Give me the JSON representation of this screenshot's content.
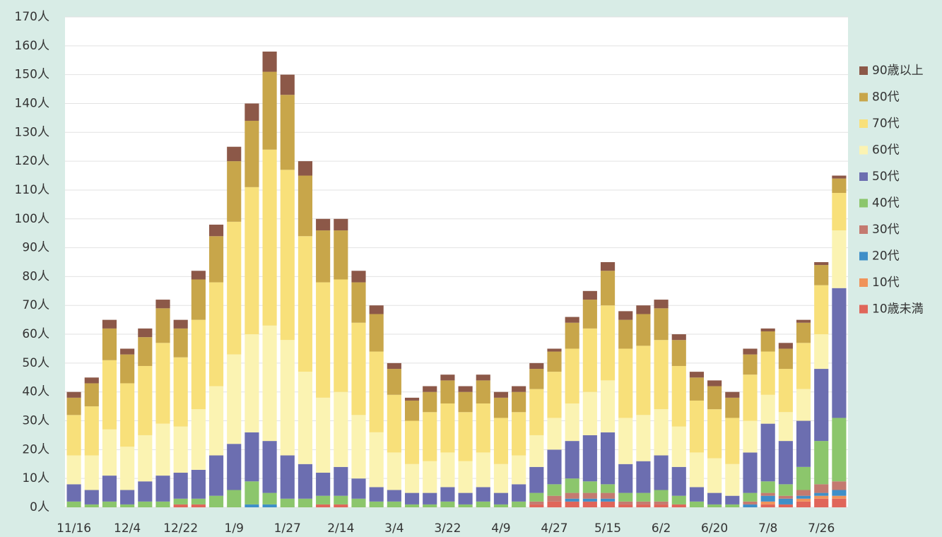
{
  "chart_data": {
    "type": "stacked_bar",
    "categories": [
      "11/16",
      null,
      null,
      "12/4",
      null,
      null,
      "12/22",
      null,
      null,
      "1/9",
      null,
      null,
      "1/27",
      null,
      null,
      "2/14",
      null,
      null,
      "3/4",
      null,
      null,
      "3/22",
      null,
      null,
      "4/9",
      null,
      null,
      "4/27",
      null,
      null,
      "5/15",
      null,
      null,
      "6/2",
      null,
      null,
      "6/20",
      null,
      null,
      "7/8",
      null,
      null,
      "7/26",
      null
    ],
    "series": [
      {
        "name": "10歳未満",
        "color": "#e0665a",
        "values": [
          0,
          0,
          0,
          0,
          0,
          0,
          1,
          1,
          0,
          0,
          0,
          0,
          0,
          0,
          1,
          1,
          0,
          0,
          0,
          0,
          0,
          0,
          0,
          0,
          0,
          0,
          1,
          2,
          2,
          2,
          2,
          1,
          1,
          1,
          1,
          0,
          0,
          0,
          0,
          1,
          1,
          2,
          3,
          3
        ]
      },
      {
        "name": "10代",
        "color": "#f0935a",
        "values": [
          0,
          0,
          0,
          0,
          0,
          0,
          0,
          0,
          0,
          0,
          0,
          0,
          0,
          0,
          0,
          0,
          0,
          0,
          0,
          0,
          0,
          0,
          0,
          0,
          0,
          0,
          0,
          0,
          0,
          0,
          0,
          0,
          0,
          0,
          0,
          0,
          0,
          0,
          0,
          1,
          0,
          1,
          1,
          1
        ]
      },
      {
        "name": "20代",
        "color": "#3f8fc8",
        "values": [
          0,
          0,
          0,
          0,
          0,
          0,
          0,
          0,
          0,
          0,
          1,
          1,
          0,
          0,
          0,
          0,
          0,
          0,
          0,
          0,
          0,
          0,
          0,
          0,
          0,
          0,
          0,
          0,
          1,
          1,
          1,
          0,
          0,
          0,
          0,
          0,
          0,
          0,
          1,
          2,
          2,
          1,
          1,
          2
        ]
      },
      {
        "name": "30代",
        "color": "#c47a70",
        "values": [
          0,
          0,
          0,
          0,
          0,
          0,
          0,
          0,
          0,
          0,
          0,
          0,
          0,
          0,
          0,
          0,
          0,
          0,
          0,
          0,
          0,
          0,
          0,
          0,
          0,
          0,
          1,
          2,
          2,
          2,
          2,
          1,
          1,
          1,
          0,
          0,
          0,
          0,
          1,
          1,
          1,
          2,
          3,
          3
        ]
      },
      {
        "name": "40代",
        "color": "#8cc66c",
        "values": [
          2,
          1,
          2,
          1,
          2,
          2,
          2,
          2,
          4,
          6,
          8,
          4,
          3,
          3,
          3,
          3,
          3,
          2,
          2,
          1,
          1,
          2,
          1,
          2,
          1,
          2,
          3,
          4,
          5,
          4,
          3,
          3,
          3,
          4,
          3,
          2,
          1,
          1,
          3,
          4,
          4,
          8,
          15,
          22
        ]
      },
      {
        "name": "50代",
        "color": "#6c6eb0",
        "values": [
          6,
          5,
          9,
          5,
          7,
          9,
          9,
          10,
          14,
          16,
          17,
          18,
          15,
          12,
          8,
          10,
          7,
          5,
          4,
          4,
          4,
          5,
          4,
          5,
          4,
          6,
          9,
          12,
          13,
          16,
          18,
          10,
          11,
          12,
          10,
          5,
          4,
          3,
          14,
          20,
          15,
          16,
          25,
          45
        ]
      },
      {
        "name": "60代",
        "color": "#fbf3b2",
        "values": [
          10,
          12,
          16,
          15,
          16,
          18,
          16,
          21,
          24,
          31,
          34,
          40,
          40,
          32,
          26,
          26,
          22,
          19,
          13,
          10,
          11,
          12,
          11,
          12,
          10,
          10,
          11,
          11,
          13,
          15,
          18,
          16,
          16,
          16,
          14,
          12,
          12,
          11,
          11,
          10,
          10,
          11,
          12,
          20
        ]
      },
      {
        "name": "70代",
        "color": "#f8e07a",
        "values": [
          14,
          17,
          24,
          22,
          24,
          28,
          24,
          31,
          36,
          46,
          51,
          61,
          59,
          47,
          40,
          39,
          32,
          28,
          20,
          15,
          17,
          17,
          17,
          17,
          16,
          15,
          16,
          16,
          19,
          22,
          26,
          24,
          24,
          24,
          21,
          18,
          17,
          16,
          16,
          15,
          15,
          16,
          17,
          13
        ]
      },
      {
        "name": "80代",
        "color": "#c8a64a",
        "values": [
          6,
          8,
          11,
          10,
          10,
          12,
          10,
          14,
          16,
          21,
          23,
          27,
          26,
          21,
          18,
          17,
          14,
          13,
          9,
          7,
          7,
          8,
          7,
          8,
          7,
          7,
          7,
          7,
          9,
          10,
          12,
          10,
          11,
          11,
          9,
          8,
          8,
          7,
          7,
          7,
          7,
          7,
          7,
          5
        ]
      },
      {
        "name": "90歳以上",
        "color": "#8c5848",
        "values": [
          2,
          2,
          3,
          2,
          3,
          3,
          3,
          3,
          4,
          5,
          6,
          7,
          7,
          5,
          4,
          4,
          4,
          3,
          2,
          1,
          2,
          2,
          2,
          2,
          2,
          2,
          2,
          1,
          2,
          3,
          3,
          3,
          3,
          3,
          2,
          2,
          2,
          2,
          2,
          1,
          2,
          1,
          1,
          1
        ]
      }
    ],
    "ylim": [
      0,
      170
    ],
    "yticks": [
      {
        "value": 0,
        "label": "0人"
      },
      {
        "value": 10,
        "label": "10人"
      },
      {
        "value": 20,
        "label": "20人"
      },
      {
        "value": 30,
        "label": "30人"
      },
      {
        "value": 40,
        "label": "40人"
      },
      {
        "value": 50,
        "label": "50人"
      },
      {
        "value": 60,
        "label": "60人"
      },
      {
        "value": 70,
        "label": "70人"
      },
      {
        "value": 80,
        "label": "80人"
      },
      {
        "value": 90,
        "label": "90人"
      },
      {
        "value": 100,
        "label": "100人"
      },
      {
        "value": 110,
        "label": "110人"
      },
      {
        "value": 120,
        "label": "120人"
      },
      {
        "value": 130,
        "label": "130人"
      },
      {
        "value": 140,
        "label": "140人"
      },
      {
        "value": 150,
        "label": "150人"
      },
      {
        "value": 160,
        "label": "160人"
      },
      {
        "value": 170,
        "label": "170人"
      }
    ],
    "grid": true,
    "legend": "right"
  }
}
